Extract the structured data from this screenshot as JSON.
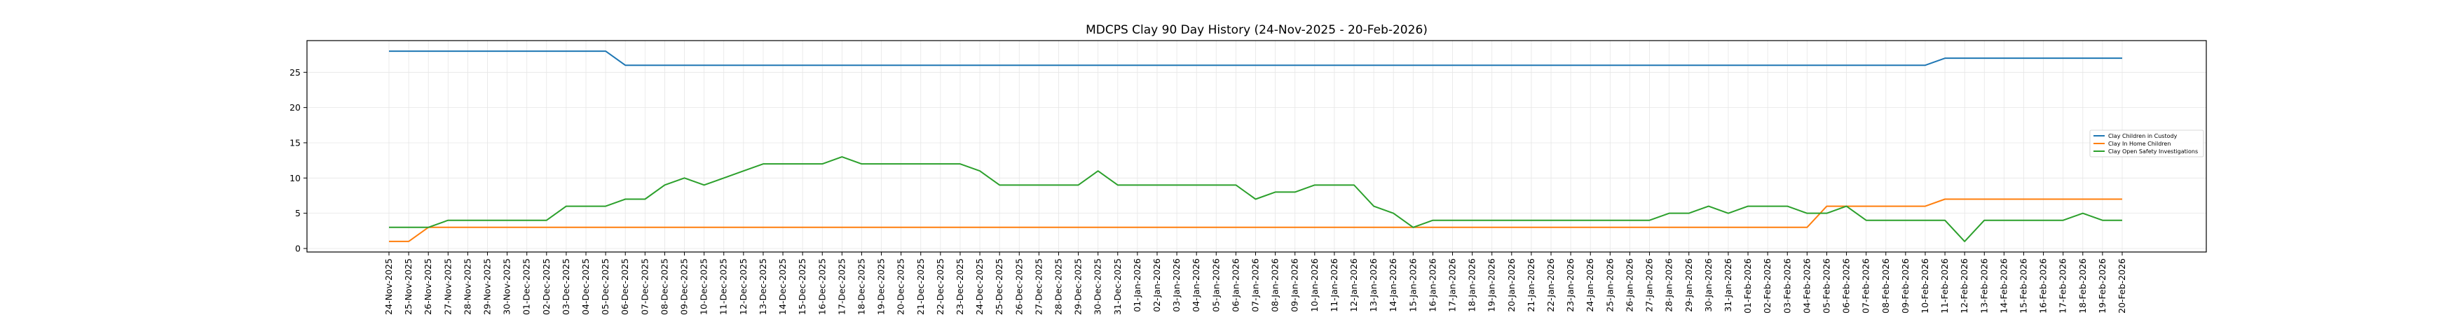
{
  "chart_data": {
    "type": "line",
    "title": "MDCPS Clay 90 Day History (24-Nov-2025 - 20-Feb-2026)",
    "xlabel": "",
    "ylabel": "",
    "ylim": [
      -0.5,
      29.5
    ],
    "yticks": [
      0,
      5,
      10,
      15,
      20,
      25
    ],
    "grid": true,
    "legend_position": "center-right",
    "x": [
      "24-Nov-2025",
      "25-Nov-2025",
      "26-Nov-2025",
      "27-Nov-2025",
      "28-Nov-2025",
      "29-Nov-2025",
      "30-Nov-2025",
      "01-Dec-2025",
      "02-Dec-2025",
      "03-Dec-2025",
      "04-Dec-2025",
      "05-Dec-2025",
      "06-Dec-2025",
      "07-Dec-2025",
      "08-Dec-2025",
      "09-Dec-2025",
      "10-Dec-2025",
      "11-Dec-2025",
      "12-Dec-2025",
      "13-Dec-2025",
      "14-Dec-2025",
      "15-Dec-2025",
      "16-Dec-2025",
      "17-Dec-2025",
      "18-Dec-2025",
      "19-Dec-2025",
      "20-Dec-2025",
      "21-Dec-2025",
      "22-Dec-2025",
      "23-Dec-2025",
      "24-Dec-2025",
      "25-Dec-2025",
      "26-Dec-2025",
      "27-Dec-2025",
      "28-Dec-2025",
      "29-Dec-2025",
      "30-Dec-2025",
      "31-Dec-2025",
      "01-Jan-2026",
      "02-Jan-2026",
      "03-Jan-2026",
      "04-Jan-2026",
      "05-Jan-2026",
      "06-Jan-2026",
      "07-Jan-2026",
      "08-Jan-2026",
      "09-Jan-2026",
      "10-Jan-2026",
      "11-Jan-2026",
      "12-Jan-2026",
      "13-Jan-2026",
      "14-Jan-2026",
      "15-Jan-2026",
      "16-Jan-2026",
      "17-Jan-2026",
      "18-Jan-2026",
      "19-Jan-2026",
      "20-Jan-2026",
      "21-Jan-2026",
      "22-Jan-2026",
      "23-Jan-2026",
      "24-Jan-2026",
      "25-Jan-2026",
      "26-Jan-2026",
      "27-Jan-2026",
      "28-Jan-2026",
      "29-Jan-2026",
      "30-Jan-2026",
      "31-Jan-2026",
      "01-Feb-2026",
      "02-Feb-2026",
      "03-Feb-2026",
      "04-Feb-2026",
      "05-Feb-2026",
      "06-Feb-2026",
      "07-Feb-2026",
      "08-Feb-2026",
      "09-Feb-2026",
      "10-Feb-2026",
      "11-Feb-2026",
      "12-Feb-2026",
      "13-Feb-2026",
      "14-Feb-2026",
      "15-Feb-2026",
      "16-Feb-2026",
      "17-Feb-2026",
      "18-Feb-2026",
      "19-Feb-2026",
      "20-Feb-2026"
    ],
    "series": [
      {
        "name": "Clay Children in Custody",
        "color": "#1f77b4",
        "values": [
          28,
          28,
          28,
          28,
          28,
          28,
          28,
          28,
          28,
          28,
          28,
          28,
          26,
          26,
          26,
          26,
          26,
          26,
          26,
          26,
          26,
          26,
          26,
          26,
          26,
          26,
          26,
          26,
          26,
          26,
          26,
          26,
          26,
          26,
          26,
          26,
          26,
          26,
          26,
          26,
          26,
          26,
          26,
          26,
          26,
          26,
          26,
          26,
          26,
          26,
          26,
          26,
          26,
          26,
          26,
          26,
          26,
          26,
          26,
          26,
          26,
          26,
          26,
          26,
          26,
          26,
          26,
          26,
          26,
          26,
          26,
          26,
          26,
          26,
          26,
          26,
          26,
          26,
          26,
          27,
          27,
          27,
          27,
          27,
          27,
          27,
          27,
          27,
          27
        ]
      },
      {
        "name": "Clay In Home Children",
        "color": "#ff7f0e",
        "values": [
          1,
          1,
          3,
          3,
          3,
          3,
          3,
          3,
          3,
          3,
          3,
          3,
          3,
          3,
          3,
          3,
          3,
          3,
          3,
          3,
          3,
          3,
          3,
          3,
          3,
          3,
          3,
          3,
          3,
          3,
          3,
          3,
          3,
          3,
          3,
          3,
          3,
          3,
          3,
          3,
          3,
          3,
          3,
          3,
          3,
          3,
          3,
          3,
          3,
          3,
          3,
          3,
          3,
          3,
          3,
          3,
          3,
          3,
          3,
          3,
          3,
          3,
          3,
          3,
          3,
          3,
          3,
          3,
          3,
          3,
          3,
          3,
          3,
          6,
          6,
          6,
          6,
          6,
          6,
          7,
          7,
          7,
          7,
          7,
          7,
          7,
          7,
          7,
          7
        ]
      },
      {
        "name": "Clay Open Safety Investigations",
        "color": "#2ca02c",
        "values": [
          3,
          3,
          3,
          4,
          4,
          4,
          4,
          4,
          4,
          6,
          6,
          6,
          7,
          7,
          9,
          10,
          9,
          10,
          11,
          12,
          12,
          12,
          12,
          13,
          12,
          12,
          12,
          12,
          12,
          12,
          11,
          9,
          9,
          9,
          9,
          9,
          11,
          9,
          9,
          9,
          9,
          9,
          9,
          9,
          7,
          8,
          8,
          9,
          9,
          9,
          6,
          5,
          3,
          4,
          4,
          4,
          4,
          4,
          4,
          4,
          4,
          4,
          4,
          4,
          4,
          5,
          5,
          6,
          5,
          6,
          6,
          6,
          5,
          5,
          6,
          4,
          4,
          4,
          4,
          4,
          1,
          4,
          4,
          4,
          4,
          4,
          5,
          4,
          4
        ]
      }
    ]
  }
}
